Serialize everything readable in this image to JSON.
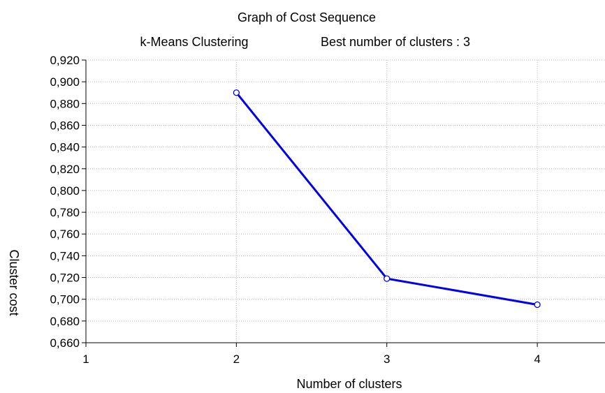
{
  "chart_data": {
    "type": "line",
    "title": "Graph of Cost Sequence",
    "subtitle_left": "k-Means Clustering",
    "subtitle_right": "Best number of clusters : 3",
    "xlabel": "Number of clusters",
    "ylabel": "Cluster cost",
    "x": [
      2,
      3,
      4
    ],
    "series": [
      {
        "values": [
          0.89,
          0.719,
          0.695
        ],
        "color": "#0000ee"
      }
    ],
    "xlim": [
      1,
      4.45
    ],
    "ylim": [
      0.66,
      0.92
    ],
    "xticks": [
      1,
      2,
      3,
      4
    ],
    "xtick_labels": [
      "1",
      "2",
      "3",
      "4"
    ],
    "yticks": [
      0.66,
      0.68,
      0.7,
      0.72,
      0.74,
      0.76,
      0.78,
      0.8,
      0.82,
      0.84,
      0.86,
      0.88,
      0.9,
      0.92
    ],
    "ytick_labels": [
      "0,660",
      "0,680",
      "0,700",
      "0,720",
      "0,740",
      "0,760",
      "0,780",
      "0,800",
      "0,820",
      "0,840",
      "0,860",
      "0,880",
      "0,900",
      "0,920"
    ],
    "grid": true,
    "marker": "open-circle"
  }
}
